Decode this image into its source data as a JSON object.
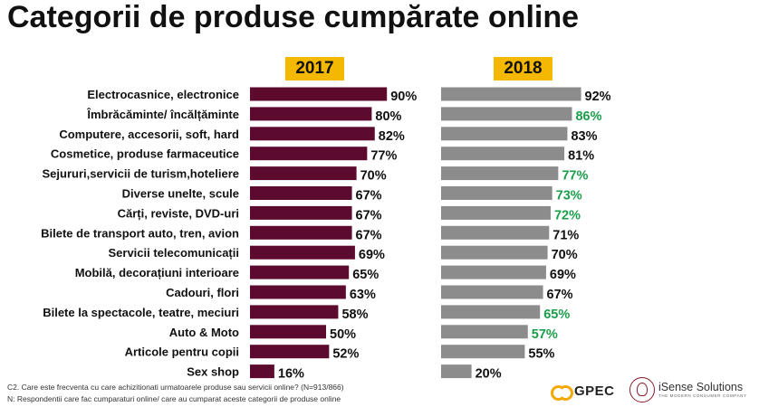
{
  "page": {
    "title": "Categorii de produse cumpărate online",
    "footnotes": [
      "C2.  Care este frecventa cu care achizitionati urmatoarele produse sau servicii online? (N=913/866)",
      "N: Respondentii care fac cumparaturi online/ care au cumparat aceste categorii de produse online"
    ],
    "logos": {
      "gpec": "GPEC",
      "isense": "iSense Solutions",
      "isense_tagline": "THE MODERN CONSUMER COMPANY"
    }
  },
  "chart_data": {
    "type": "bar",
    "orientation": "horizontal",
    "title": "Categorii de produse cumpărate online",
    "categories": [
      "Electrocasnice, electronice",
      "Îmbrăcăminte/ încălțăminte",
      "Computere, accesorii, soft, hard",
      "Cosmetice, produse farmaceutice",
      "Sejururi,servicii de turism,hoteliere",
      "Diverse unelte, scule",
      "Cărți, reviste, DVD-uri",
      "Bilete de transport auto, tren, avion",
      "Servicii telecomunicații",
      "Mobilă, decorațiuni interioare",
      "Cadouri, flori",
      "Bilete la spectacole, teatre, meciuri",
      "Auto & Moto",
      "Articole pentru copii",
      "Sex shop"
    ],
    "series": [
      {
        "name": "2017",
        "color": "#5c0a2e",
        "values": [
          90,
          80,
          82,
          77,
          70,
          67,
          67,
          67,
          69,
          65,
          63,
          58,
          50,
          52,
          16
        ]
      },
      {
        "name": "2018",
        "color": "#8c8c8c",
        "values": [
          92,
          86,
          83,
          81,
          77,
          73,
          72,
          71,
          70,
          69,
          67,
          65,
          57,
          55,
          20
        ],
        "highlighted": [
          false,
          true,
          false,
          false,
          true,
          true,
          true,
          false,
          false,
          false,
          false,
          true,
          true,
          false,
          false
        ]
      }
    ],
    "value_suffix": "%",
    "label_color": "#111111",
    "highlight_color": "#1a9e4a",
    "badge_color": "#f5b800",
    "xlim": [
      0,
      100
    ],
    "grid": false
  }
}
